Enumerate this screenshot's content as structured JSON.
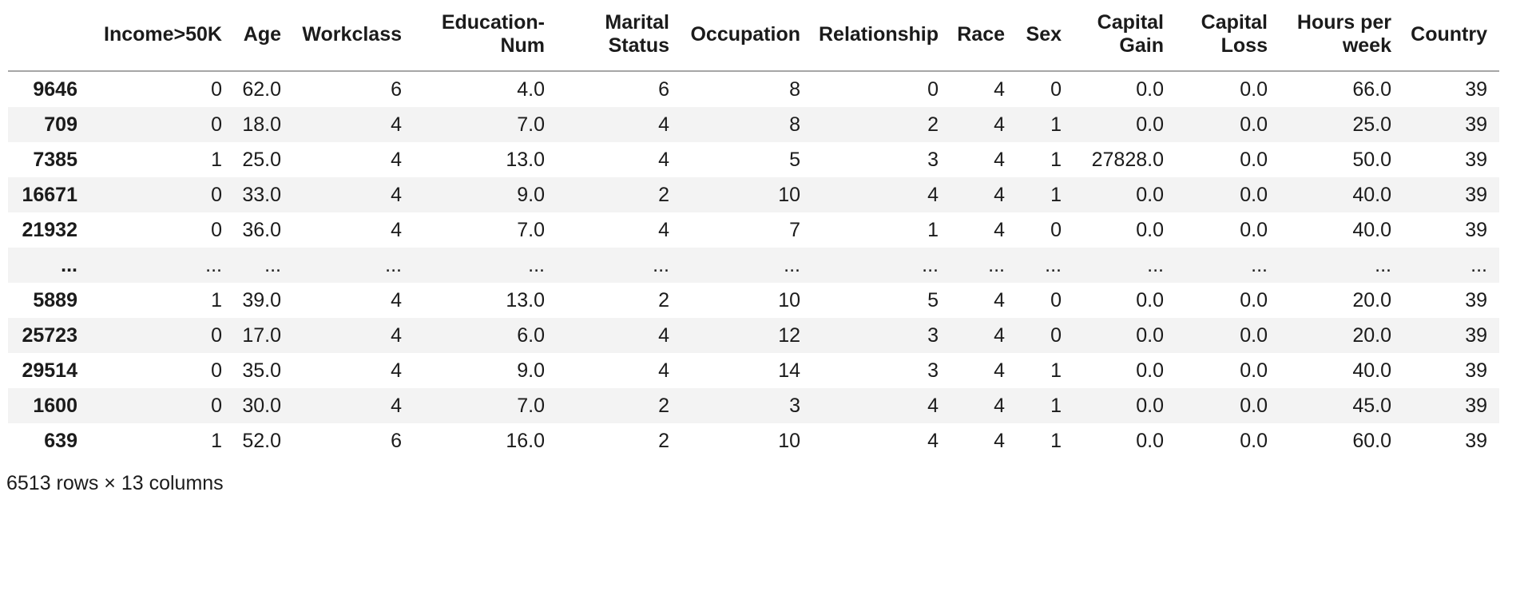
{
  "theme": {
    "text_color": "#1b1b1b",
    "stripe_color": "#f3f3f3",
    "header_border_color": "#a6a6a6",
    "background_color": "#ffffff"
  },
  "table": {
    "index_header": "",
    "columns": [
      "Income>50K",
      "Age",
      "Workclass",
      "Education-Num",
      "Marital Status",
      "Occupation",
      "Relationship",
      "Race",
      "Sex",
      "Capital Gain",
      "Capital Loss",
      "Hours per week",
      "Country"
    ],
    "rows": [
      {
        "index": "9646",
        "cells": [
          "0",
          "62.0",
          "6",
          "4.0",
          "6",
          "8",
          "0",
          "4",
          "0",
          "0.0",
          "0.0",
          "66.0",
          "39"
        ]
      },
      {
        "index": "709",
        "cells": [
          "0",
          "18.0",
          "4",
          "7.0",
          "4",
          "8",
          "2",
          "4",
          "1",
          "0.0",
          "0.0",
          "25.0",
          "39"
        ]
      },
      {
        "index": "7385",
        "cells": [
          "1",
          "25.0",
          "4",
          "13.0",
          "4",
          "5",
          "3",
          "4",
          "1",
          "27828.0",
          "0.0",
          "50.0",
          "39"
        ]
      },
      {
        "index": "16671",
        "cells": [
          "0",
          "33.0",
          "4",
          "9.0",
          "2",
          "10",
          "4",
          "4",
          "1",
          "0.0",
          "0.0",
          "40.0",
          "39"
        ]
      },
      {
        "index": "21932",
        "cells": [
          "0",
          "36.0",
          "4",
          "7.0",
          "4",
          "7",
          "1",
          "4",
          "0",
          "0.0",
          "0.0",
          "40.0",
          "39"
        ]
      },
      {
        "index": "...",
        "cells": [
          "...",
          "...",
          "...",
          "...",
          "...",
          "...",
          "...",
          "...",
          "...",
          "...",
          "...",
          "...",
          "..."
        ]
      },
      {
        "index": "5889",
        "cells": [
          "1",
          "39.0",
          "4",
          "13.0",
          "2",
          "10",
          "5",
          "4",
          "0",
          "0.0",
          "0.0",
          "20.0",
          "39"
        ]
      },
      {
        "index": "25723",
        "cells": [
          "0",
          "17.0",
          "4",
          "6.0",
          "4",
          "12",
          "3",
          "4",
          "0",
          "0.0",
          "0.0",
          "20.0",
          "39"
        ]
      },
      {
        "index": "29514",
        "cells": [
          "0",
          "35.0",
          "4",
          "9.0",
          "4",
          "14",
          "3",
          "4",
          "1",
          "0.0",
          "0.0",
          "40.0",
          "39"
        ]
      },
      {
        "index": "1600",
        "cells": [
          "0",
          "30.0",
          "4",
          "7.0",
          "2",
          "3",
          "4",
          "4",
          "1",
          "0.0",
          "0.0",
          "45.0",
          "39"
        ]
      },
      {
        "index": "639",
        "cells": [
          "1",
          "52.0",
          "6",
          "16.0",
          "2",
          "10",
          "4",
          "4",
          "1",
          "0.0",
          "0.0",
          "60.0",
          "39"
        ]
      }
    ],
    "footer": "6513 rows × 13 columns"
  }
}
